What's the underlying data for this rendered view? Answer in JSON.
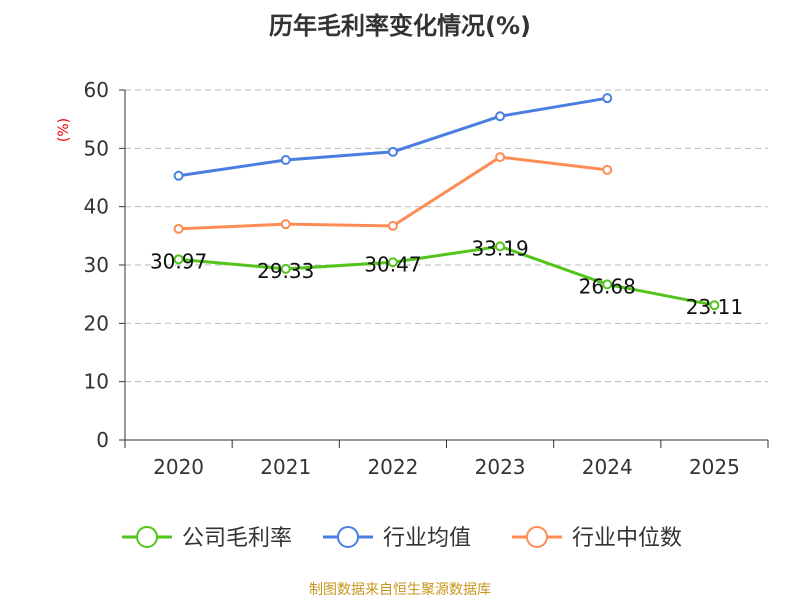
{
  "chart_data": {
    "type": "line",
    "title": "历年毛利率变化情况(%)",
    "ylabel": "(%)",
    "xlabel": "",
    "ylim": [
      0,
      60
    ],
    "yticks": [
      0,
      10,
      20,
      30,
      40,
      50,
      60
    ],
    "grid": true,
    "legend_position": "bottom",
    "categories": [
      "2020",
      "2021",
      "2022",
      "2023",
      "2024",
      "2025"
    ],
    "series": [
      {
        "name": "公司毛利率",
        "color": "#52c41a",
        "values": [
          30.97,
          29.33,
          30.47,
          33.19,
          26.68,
          23.11
        ],
        "labels": [
          "30.97",
          "29.33",
          "30.47",
          "33.19",
          "26.68",
          "23.11"
        ]
      },
      {
        "name": "行业均值",
        "color": "#4a7fe0",
        "values": [
          45.3,
          48.0,
          49.4,
          55.5,
          58.6,
          null
        ]
      },
      {
        "name": "行业中位数",
        "color": "#ff8c55",
        "values": [
          36.2,
          37.0,
          36.7,
          48.5,
          46.3,
          null
        ]
      }
    ]
  },
  "footer": "制图数据来自恒生聚源数据库"
}
